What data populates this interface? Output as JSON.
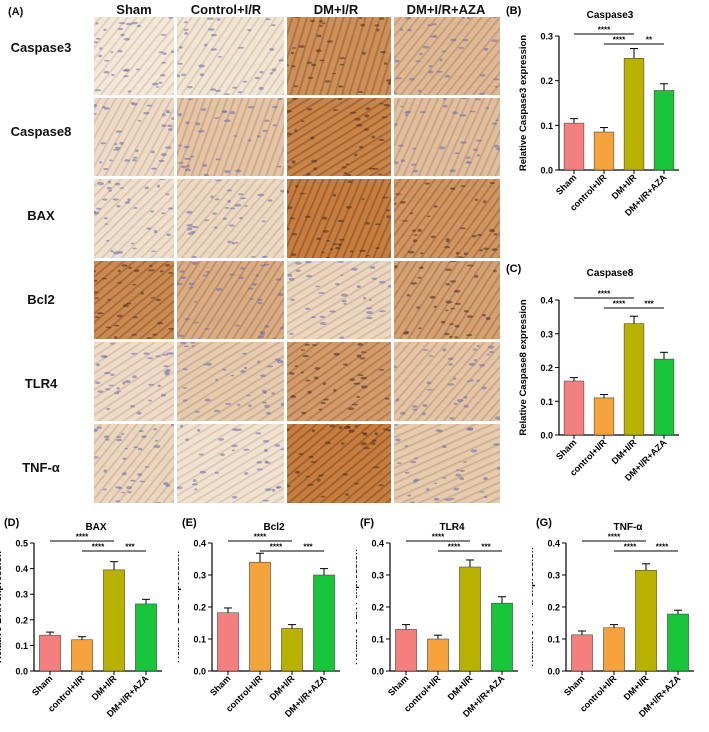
{
  "panel_a": {
    "letter": "(A)",
    "columns": [
      "Sham",
      "Control+I/R",
      "DM+I/R",
      "DM+I/R+AZA"
    ],
    "rows": [
      "Caspase3",
      "Caspase8",
      "BAX",
      "Bcl2",
      "TLR4",
      "TNF-α"
    ],
    "stain_levels": [
      [
        0.05,
        0.08,
        0.8,
        0.45
      ],
      [
        0.15,
        0.35,
        0.9,
        0.4
      ],
      [
        0.12,
        0.18,
        0.95,
        0.75
      ],
      [
        0.85,
        0.55,
        0.2,
        0.65
      ],
      [
        0.15,
        0.3,
        0.7,
        0.35
      ],
      [
        0.2,
        0.1,
        0.95,
        0.3
      ]
    ]
  },
  "colors": {
    "sham": "#f47f7f",
    "control": "#f5a33c",
    "dm": "#b8b100",
    "aza": "#18c43a"
  },
  "chart_data": [
    {
      "letter": "(B)",
      "type": "bar",
      "title": "Caspase3",
      "categories": [
        "Sham",
        "control+I/R",
        "DM+I/R",
        "DM+I/R+AZA"
      ],
      "values": [
        0.105,
        0.085,
        0.25,
        0.178
      ],
      "errors": [
        0.01,
        0.01,
        0.022,
        0.015
      ],
      "ylabel": "Relative Caspase3 expression",
      "ylim": [
        0,
        0.3
      ],
      "yticks": [
        "0.0",
        "0.1",
        "0.2",
        "0.3"
      ],
      "brackets": [
        {
          "from": 0,
          "to": 2,
          "label": "****"
        },
        {
          "from": 1,
          "to": 2,
          "label": "****"
        },
        {
          "from": 2,
          "to": 3,
          "label": "**"
        }
      ]
    },
    {
      "letter": "(C)",
      "type": "bar",
      "title": "Caspase8",
      "categories": [
        "Sham",
        "control+I/R",
        "DM+I/R",
        "DM+I/R+AZA"
      ],
      "values": [
        0.16,
        0.11,
        0.33,
        0.225
      ],
      "errors": [
        0.01,
        0.01,
        0.022,
        0.02
      ],
      "ylabel": "Relative Caspase8 expression",
      "ylim": [
        0,
        0.4
      ],
      "yticks": [
        "0.0",
        "0.1",
        "0.2",
        "0.3",
        "0.4"
      ],
      "brackets": [
        {
          "from": 0,
          "to": 2,
          "label": "****"
        },
        {
          "from": 1,
          "to": 2,
          "label": "****"
        },
        {
          "from": 2,
          "to": 3,
          "label": "***"
        }
      ]
    },
    {
      "letter": "(D)",
      "type": "bar",
      "title": "BAX",
      "categories": [
        "Sham",
        "control+I/R",
        "DM+I/R",
        "DM+I/R+AZA"
      ],
      "values": [
        0.14,
        0.122,
        0.395,
        0.262
      ],
      "errors": [
        0.012,
        0.012,
        0.032,
        0.018
      ],
      "ylabel": "Relative BAX expression",
      "ylim": [
        0,
        0.5
      ],
      "yticks": [
        "0.0",
        "0.1",
        "0.2",
        "0.3",
        "0.4",
        "0.5"
      ],
      "brackets": [
        {
          "from": 0,
          "to": 2,
          "label": "****"
        },
        {
          "from": 1,
          "to": 2,
          "label": "****"
        },
        {
          "from": 2,
          "to": 3,
          "label": "***"
        }
      ]
    },
    {
      "letter": "(E)",
      "type": "bar",
      "title": "Bcl2",
      "categories": [
        "Sham",
        "control+I/R",
        "DM+I/R",
        "DM+I/R+AZA"
      ],
      "values": [
        0.182,
        0.34,
        0.133,
        0.3
      ],
      "errors": [
        0.015,
        0.028,
        0.012,
        0.02
      ],
      "ylabel": "Relative Bcl2 expression",
      "ylim": [
        0,
        0.4
      ],
      "yticks": [
        "0.0",
        "0.1",
        "0.2",
        "0.3",
        "0.4"
      ],
      "brackets": [
        {
          "from": 0,
          "to": 2,
          "label": "****"
        },
        {
          "from": 1,
          "to": 2,
          "label": "****"
        },
        {
          "from": 2,
          "to": 3,
          "label": "***"
        }
      ]
    },
    {
      "letter": "(F)",
      "type": "bar",
      "title": "TLR4",
      "categories": [
        "Sham",
        "control+I/R",
        "DM+I/R",
        "DM+I/R+AZA"
      ],
      "values": [
        0.13,
        0.1,
        0.325,
        0.212
      ],
      "errors": [
        0.015,
        0.012,
        0.022,
        0.02
      ],
      "ylabel": "Relative TLR4 expression",
      "ylim": [
        0,
        0.4
      ],
      "yticks": [
        "0.0",
        "0.1",
        "0.2",
        "0.3",
        "0.4"
      ],
      "brackets": [
        {
          "from": 0,
          "to": 2,
          "label": "****"
        },
        {
          "from": 1,
          "to": 2,
          "label": "****"
        },
        {
          "from": 2,
          "to": 3,
          "label": "***"
        }
      ]
    },
    {
      "letter": "(G)",
      "type": "bar",
      "title": "TNF-α",
      "categories": [
        "Sham",
        "control+I/R",
        "DM+I/R",
        "DM+I/R+AZA"
      ],
      "values": [
        0.113,
        0.135,
        0.315,
        0.178
      ],
      "errors": [
        0.012,
        0.01,
        0.02,
        0.012
      ],
      "ylabel": "Relative TNF-α expression",
      "ylim": [
        0,
        0.4
      ],
      "yticks": [
        "0.0",
        "0.1",
        "0.2",
        "0.3",
        "0.4"
      ],
      "brackets": [
        {
          "from": 0,
          "to": 2,
          "label": "****"
        },
        {
          "from": 1,
          "to": 2,
          "label": "****"
        },
        {
          "from": 2,
          "to": 3,
          "label": "****"
        }
      ]
    }
  ]
}
